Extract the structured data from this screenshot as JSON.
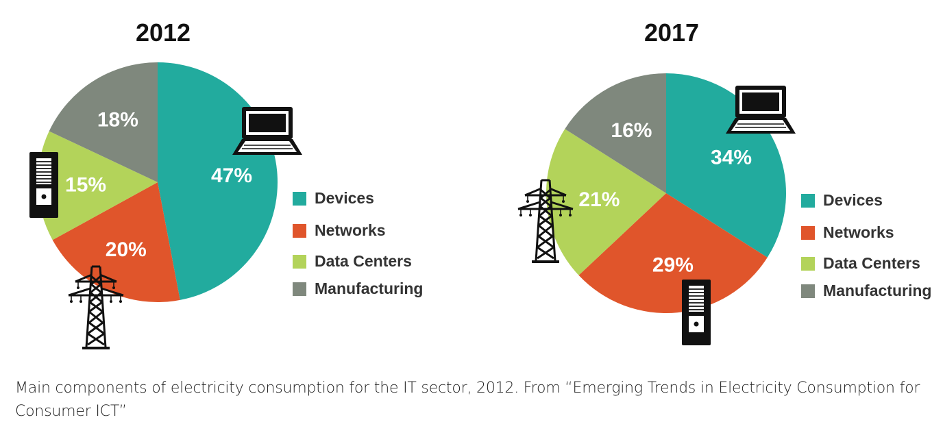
{
  "colors": {
    "devices": "#22ab9e",
    "networks": "#e0552b",
    "data_centers": "#b3d35a",
    "manufacturing": "#7f887d",
    "icon": "#111111",
    "label": "#ffffff",
    "legend_text": "#333333"
  },
  "chart_data": [
    {
      "type": "pie",
      "title": "2012",
      "categories": [
        "Devices",
        "Networks",
        "Data Centers",
        "Manufacturing"
      ],
      "values": [
        47,
        20,
        15,
        18
      ],
      "value_labels": [
        "47%",
        "20%",
        "15%",
        "18%"
      ],
      "legend_position": "right",
      "icons": [
        "laptop-icon",
        "power-tower-icon",
        "server-icon"
      ]
    },
    {
      "type": "pie",
      "title": "2017",
      "categories": [
        "Devices",
        "Networks",
        "Data Centers",
        "Manufacturing"
      ],
      "values": [
        34,
        29,
        21,
        16
      ],
      "value_labels": [
        "34%",
        "29%",
        "21%",
        "16%"
      ],
      "legend_position": "right",
      "icons": [
        "laptop-icon",
        "power-tower-icon",
        "server-icon"
      ]
    }
  ],
  "caption": "Main components of electricity consumption for the IT sector, 2012. From “Emerging Trends in Electricity Consumption for Consumer ICT”"
}
